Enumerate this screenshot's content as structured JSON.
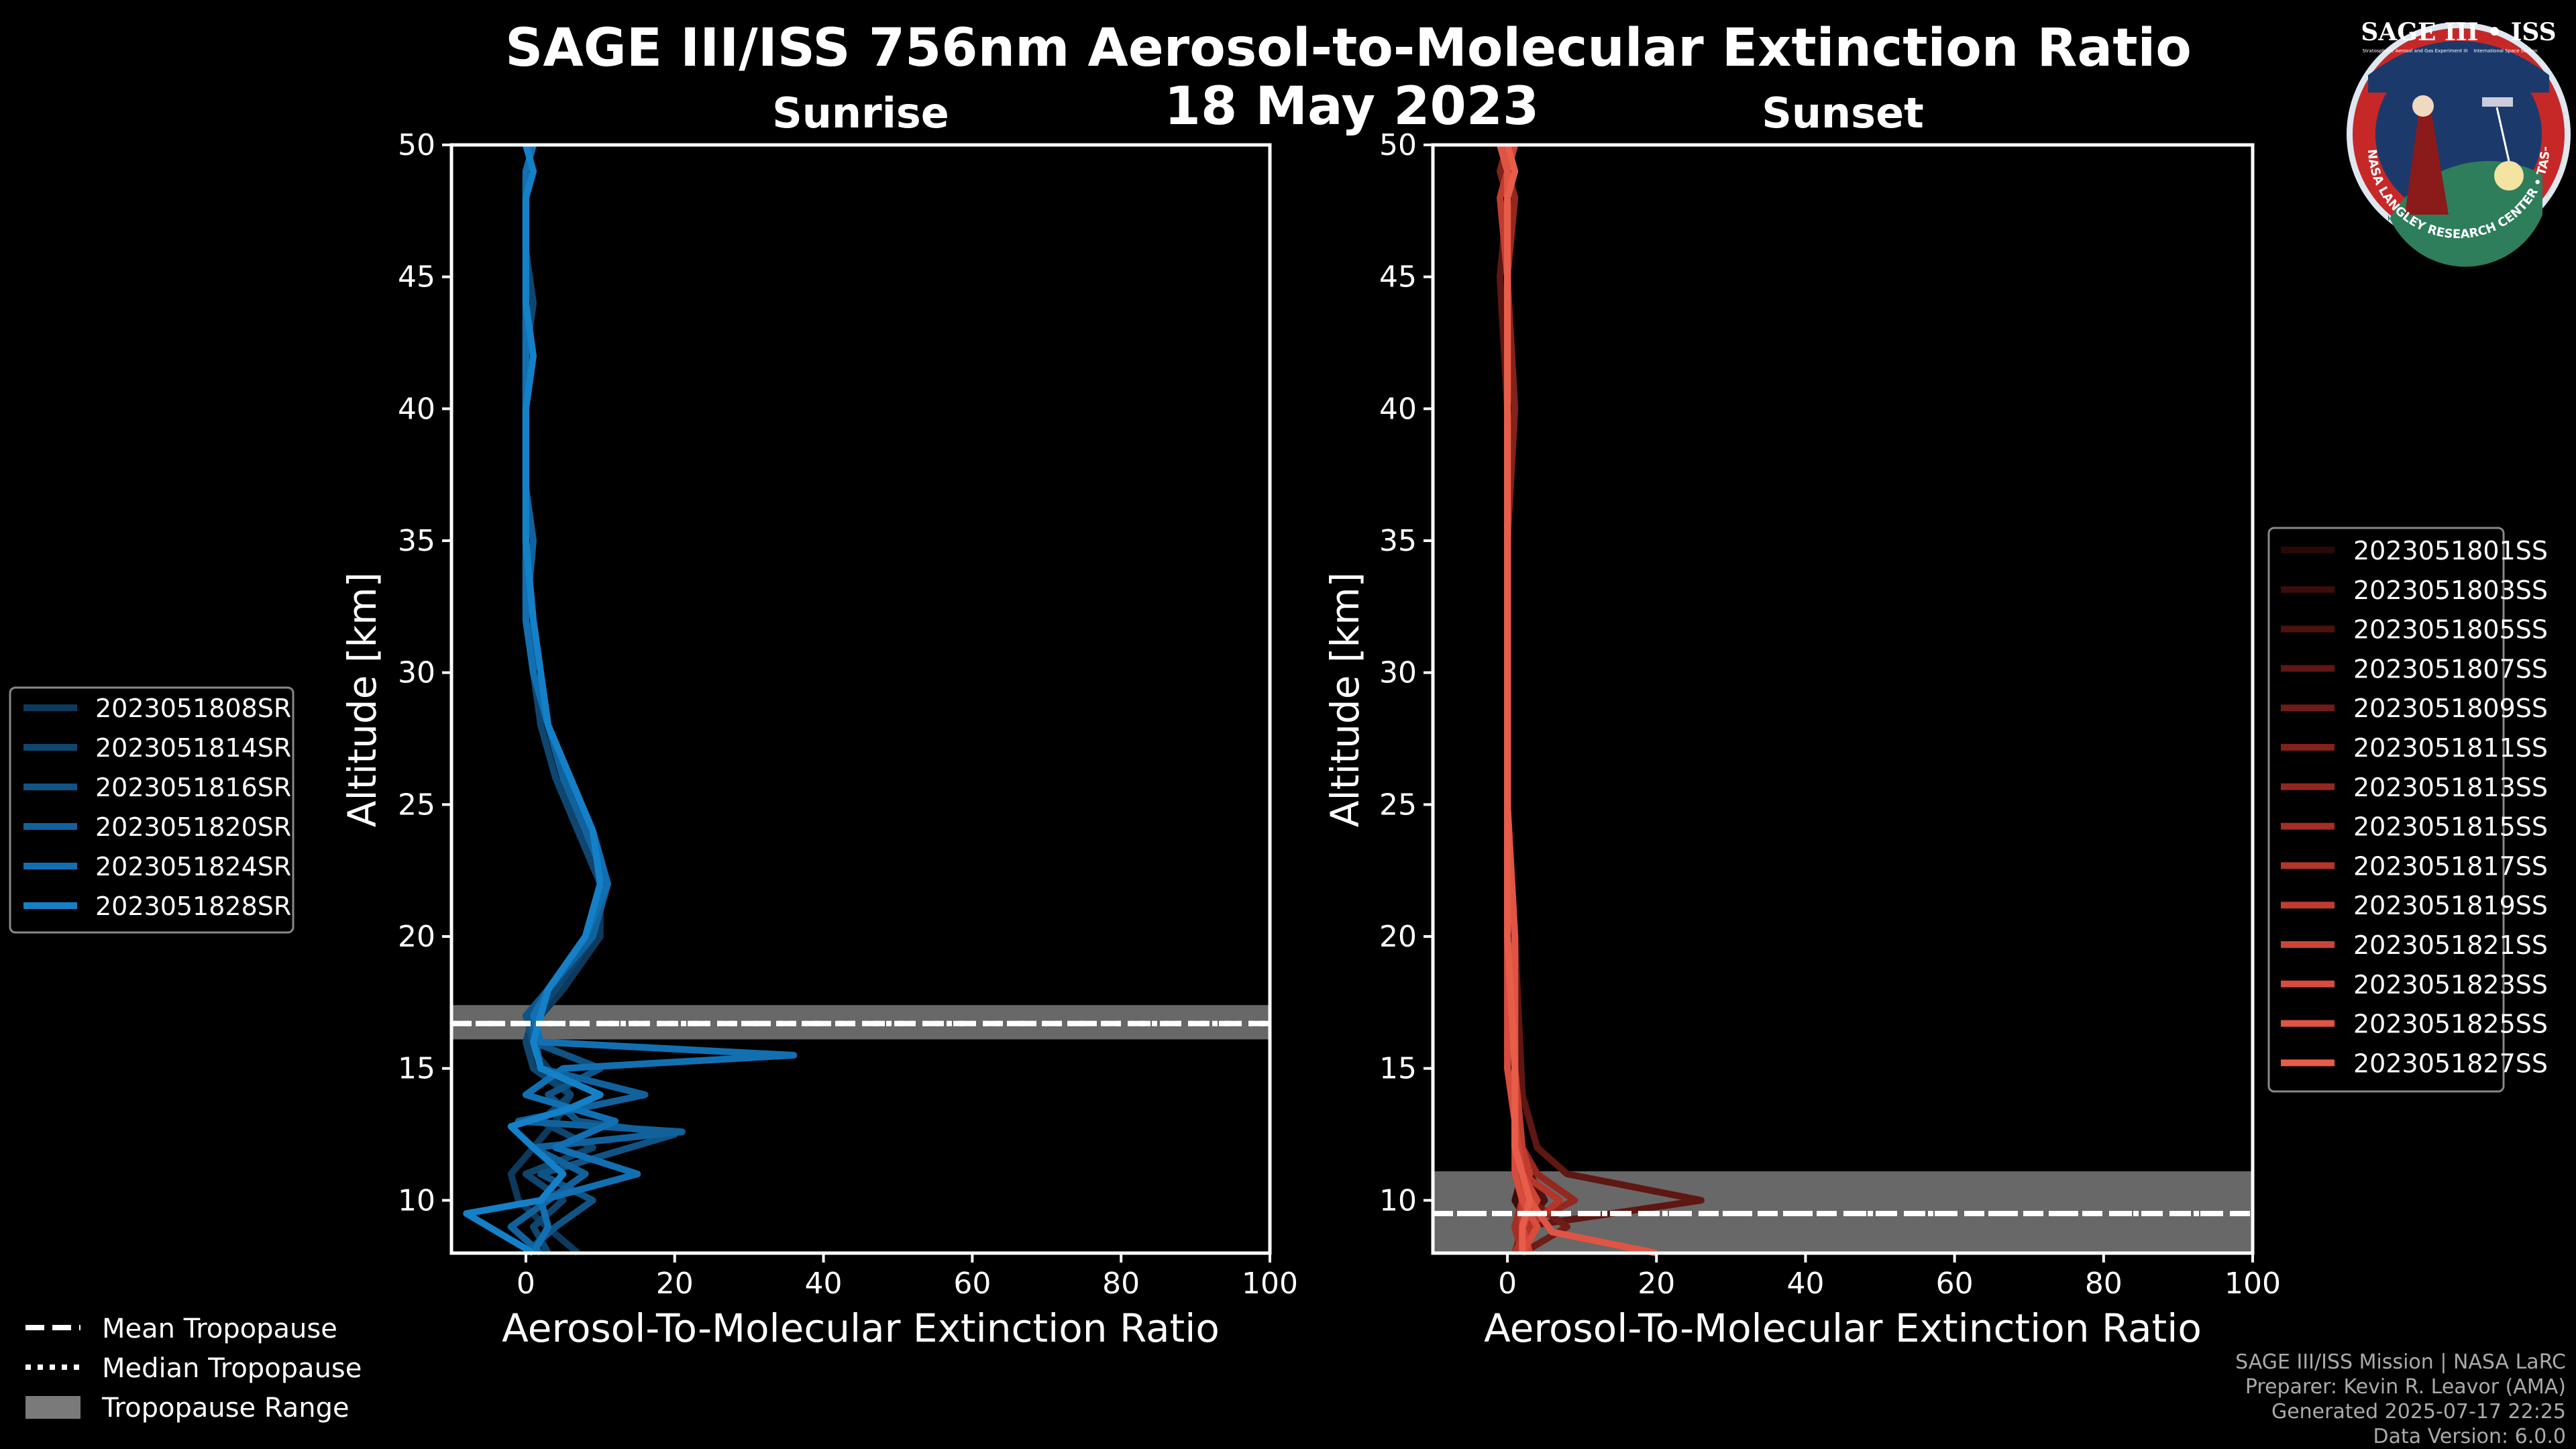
{
  "title_line1": "SAGE III/ISS 756nm Aerosol-to-Molecular Extinction Ratio",
  "title_line2": "18 May 2023",
  "logo": {
    "top_text": "SAGE III • ISS",
    "sub_text_left": "Stratospheric Aerosol and Gas Experiment III",
    "sub_text_right": "International Space Station",
    "ring_text": "BALL • NASA LANGLEY RESEARCH CENTER • TAS-I • ESA",
    "colors": {
      "ring": "#c62828",
      "inner": "#1b3a6b",
      "border": "#dfe7f0"
    }
  },
  "footer": {
    "line1": "SAGE III/ISS Mission | NASA LaRC",
    "line2": "Preparer: Kevin R. Leavor (AMA)",
    "line3": "Generated 2025-07-17 22:25",
    "line4": "Data Version: 6.0.0"
  },
  "bottom_legend": {
    "mean": "Mean Tropopause",
    "median": "Median Tropopause",
    "range": "Tropopause Range"
  },
  "chart_data": [
    {
      "type": "line",
      "title": "Sunrise",
      "xlabel": "Aerosol-To-Molecular Extinction Ratio",
      "ylabel": "Altitude [km]",
      "xlim": [
        -10,
        100
      ],
      "ylim": [
        8,
        50
      ],
      "xticks": [
        0,
        20,
        40,
        60,
        80,
        100
      ],
      "yticks": [
        10,
        15,
        20,
        25,
        30,
        35,
        40,
        45,
        50
      ],
      "legend_position": "left",
      "tropopause": {
        "mean": 16.7,
        "median": 16.7,
        "range": [
          16.1,
          17.4
        ]
      },
      "series": [
        {
          "name": "2023051808SR",
          "color": "#0d3a5c",
          "x": [
            7,
            2,
            -1,
            -2,
            1,
            4,
            6,
            3,
            0,
            2,
            5,
            10,
            10,
            8,
            5,
            3,
            1,
            0,
            0,
            0,
            0,
            0,
            0,
            0,
            0,
            0,
            1
          ],
          "y": [
            8,
            9.2,
            10,
            11,
            12,
            13,
            14,
            15,
            16,
            17,
            18,
            20,
            22,
            24,
            26,
            28,
            30,
            32,
            35,
            37,
            40,
            42,
            44,
            46,
            48,
            49,
            50
          ]
        },
        {
          "name": "2023051814SR",
          "color": "#0f4670",
          "x": [
            3,
            1,
            5,
            0,
            9,
            2,
            6,
            1,
            0,
            1,
            4,
            9,
            10,
            7,
            4,
            2,
            1,
            0,
            0,
            0,
            0,
            0,
            1,
            0,
            0,
            0,
            1
          ],
          "y": [
            8,
            9,
            10,
            11,
            12,
            13,
            14,
            15,
            16,
            17,
            18,
            20,
            22,
            24,
            26,
            28,
            30,
            32,
            35,
            37,
            40,
            42,
            44,
            46,
            48,
            49,
            50
          ]
        },
        {
          "name": "2023051816SR",
          "color": "#105486",
          "x": [
            0,
            4,
            9,
            2,
            20,
            7,
            3,
            10,
            1,
            0,
            3,
            8,
            10,
            9,
            5,
            3,
            1,
            1,
            0,
            0,
            0,
            0,
            0,
            0,
            0,
            1,
            0
          ],
          "y": [
            8,
            9,
            10,
            11,
            12.5,
            13,
            14,
            15,
            16,
            17,
            18,
            20,
            22,
            24,
            26,
            28,
            30,
            32,
            35,
            37,
            40,
            42,
            44,
            46,
            48,
            49,
            50
          ]
        },
        {
          "name": "2023051820SR",
          "color": "#11629c",
          "x": [
            2,
            -2,
            3,
            8,
            1,
            21,
            -1,
            16,
            2,
            1,
            3,
            9,
            11,
            8,
            5,
            3,
            1,
            0,
            1,
            0,
            0,
            0,
            0,
            0,
            0,
            0,
            1
          ],
          "y": [
            8,
            9,
            10,
            11,
            12,
            12.6,
            13,
            14,
            15,
            16.5,
            18,
            20,
            22,
            24,
            26,
            28,
            30,
            32,
            35,
            37,
            40,
            42,
            44,
            46,
            48,
            49,
            50
          ]
        },
        {
          "name": "2023051824SR",
          "color": "#1270b2",
          "x": [
            1,
            3,
            2,
            15,
            4,
            12,
            0,
            5,
            36,
            2,
            1,
            3,
            8,
            11,
            9,
            6,
            3,
            1,
            0,
            0,
            0,
            0,
            0,
            0,
            0,
            0,
            1
          ],
          "y": [
            8,
            9,
            10,
            11,
            12,
            13,
            14,
            15,
            15.5,
            16,
            17,
            18,
            20,
            22,
            24,
            26,
            28,
            30,
            32,
            35,
            37,
            40,
            42,
            44,
            46,
            49,
            50
          ]
        },
        {
          "name": "2023051828SR",
          "color": "#1480c8",
          "x": [
            1,
            -8,
            2,
            5,
            1,
            -2,
            6,
            10,
            2,
            1,
            3,
            8,
            10,
            9,
            6,
            3,
            2,
            1,
            0,
            0,
            0,
            1,
            0,
            0,
            0,
            1,
            0
          ],
          "y": [
            8,
            9.5,
            10,
            11,
            12,
            12.8,
            13.5,
            14,
            15,
            16,
            18,
            20,
            22,
            24,
            26,
            28,
            30,
            32,
            35,
            37,
            40,
            42,
            44,
            46,
            48,
            49,
            50
          ]
        }
      ]
    },
    {
      "type": "line",
      "title": "Sunset",
      "xlabel": "Aerosol-To-Molecular Extinction Ratio",
      "ylabel": "Altitude [km]",
      "xlim": [
        -10,
        100
      ],
      "ylim": [
        8,
        50
      ],
      "xticks": [
        0,
        20,
        40,
        60,
        80,
        100
      ],
      "yticks": [
        10,
        15,
        20,
        25,
        30,
        35,
        40,
        45,
        50
      ],
      "legend_position": "right",
      "tropopause": {
        "mean": 9.5,
        "median": 9.5,
        "range": [
          8,
          11.1
        ]
      },
      "series": [
        {
          "name": "2023051801SS",
          "color": "#2a0806",
          "x": [
            2,
            1,
            2,
            1,
            1,
            0,
            0,
            0,
            0,
            0,
            0,
            -1,
            0,
            0,
            1
          ],
          "y": [
            8,
            9,
            10,
            11,
            13,
            15,
            20,
            25,
            30,
            35,
            40,
            45,
            48,
            49,
            50
          ]
        },
        {
          "name": "2023051803SS",
          "color": "#3a0d0a",
          "x": [
            1,
            3,
            1,
            2,
            1,
            1,
            0,
            0,
            0,
            0,
            0,
            0,
            0,
            1,
            0
          ],
          "y": [
            8,
            9,
            10,
            11,
            13,
            15,
            20,
            25,
            30,
            35,
            40,
            45,
            48,
            49,
            50
          ]
        },
        {
          "name": "2023051805SS",
          "color": "#4c120e",
          "x": [
            2,
            2,
            5,
            3,
            1,
            1,
            1,
            0,
            0,
            0,
            0,
            0,
            0,
            0,
            1
          ],
          "y": [
            8,
            9,
            10,
            11,
            12,
            15,
            20,
            25,
            30,
            35,
            40,
            45,
            48,
            49,
            50
          ]
        },
        {
          "name": "2023051807SS",
          "color": "#5e1712",
          "x": [
            3,
            2,
            26,
            8,
            4,
            2,
            1,
            0,
            0,
            0,
            0,
            -1,
            0,
            0,
            0
          ],
          "y": [
            8,
            9,
            10,
            11,
            12,
            14,
            20,
            25,
            30,
            35,
            40,
            45,
            48,
            49,
            50
          ]
        },
        {
          "name": "2023051809SS",
          "color": "#701c16",
          "x": [
            2,
            8,
            3,
            2,
            1,
            1,
            1,
            0,
            0,
            0,
            0,
            0,
            0,
            0,
            1
          ],
          "y": [
            8,
            9,
            10,
            11,
            13,
            15,
            20,
            25,
            30,
            35,
            40,
            45,
            48,
            49,
            50
          ]
        },
        {
          "name": "2023051811SS",
          "color": "#82221a",
          "x": [
            1,
            2,
            2,
            3,
            2,
            1,
            0,
            0,
            0,
            0,
            1,
            0,
            0,
            -1,
            0
          ],
          "y": [
            8,
            9,
            10,
            11,
            12,
            15,
            20,
            25,
            30,
            35,
            40,
            45,
            48,
            49,
            50
          ]
        },
        {
          "name": "2023051813SS",
          "color": "#94281f",
          "x": [
            3,
            2,
            9,
            4,
            1,
            1,
            0,
            0,
            0,
            0,
            0,
            0,
            1,
            0,
            0
          ],
          "y": [
            8,
            9,
            10,
            11,
            12.5,
            15,
            20,
            25,
            30,
            35,
            40,
            45,
            48,
            49,
            50
          ]
        },
        {
          "name": "2023051815SS",
          "color": "#a62e24",
          "x": [
            2,
            1,
            2,
            2,
            1,
            0,
            0,
            0,
            0,
            0,
            0,
            0,
            0,
            0,
            1
          ],
          "y": [
            8,
            9,
            10,
            11,
            13,
            15,
            20,
            25,
            30,
            35,
            40,
            45,
            48,
            49,
            50
          ]
        },
        {
          "name": "2023051817SS",
          "color": "#b4352a",
          "x": [
            1,
            3,
            7,
            2,
            1,
            1,
            1,
            0,
            0,
            0,
            0,
            0,
            0,
            1,
            0
          ],
          "y": [
            8,
            9,
            10,
            11,
            12,
            15,
            20,
            25,
            30,
            35,
            40,
            45,
            48,
            49,
            50
          ]
        },
        {
          "name": "2023051819SS",
          "color": "#c03c30",
          "x": [
            2,
            2,
            2,
            3,
            2,
            1,
            0,
            0,
            0,
            0,
            0,
            0,
            -1,
            0,
            0
          ],
          "y": [
            8,
            9,
            10,
            11,
            12,
            15,
            20,
            25,
            30,
            35,
            40,
            45,
            48,
            49,
            50
          ]
        },
        {
          "name": "2023051821SS",
          "color": "#cc4436",
          "x": [
            3,
            2,
            4,
            2,
            1,
            1,
            0,
            0,
            0,
            0,
            0,
            0,
            0,
            0,
            1
          ],
          "y": [
            8,
            9,
            10,
            11,
            13,
            15,
            20,
            25,
            30,
            35,
            40,
            45,
            48,
            49,
            50
          ]
        },
        {
          "name": "2023051823SS",
          "color": "#d84c3d",
          "x": [
            2,
            4,
            2,
            1,
            1,
            0,
            0,
            0,
            0,
            0,
            0,
            0,
            0,
            0,
            0
          ],
          "y": [
            8,
            9,
            10,
            11,
            13,
            15,
            20,
            25,
            30,
            35,
            40,
            45,
            48,
            49,
            50
          ]
        },
        {
          "name": "2023051825SS",
          "color": "#e05444",
          "x": [
            20,
            6,
            3,
            2,
            1,
            1,
            1,
            0,
            0,
            0,
            0,
            0,
            0,
            0,
            -1
          ],
          "y": [
            8,
            8.8,
            10,
            11,
            12,
            15,
            20,
            25,
            30,
            35,
            40,
            45,
            48,
            49,
            50
          ]
        },
        {
          "name": "2023051827SS",
          "color": "#e85c4a",
          "x": [
            2,
            2,
            3,
            2,
            1,
            1,
            0,
            0,
            0,
            0,
            0,
            0,
            0,
            1,
            0
          ],
          "y": [
            8,
            9,
            10,
            11,
            12,
            15,
            20,
            25,
            30,
            35,
            40,
            45,
            48,
            49,
            50
          ]
        }
      ]
    }
  ]
}
